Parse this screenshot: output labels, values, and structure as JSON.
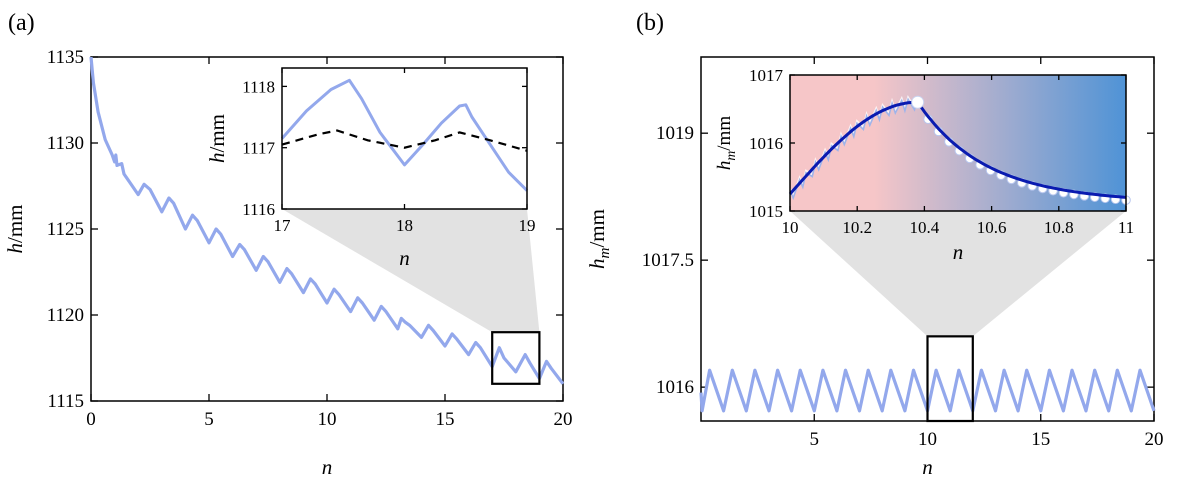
{
  "colors": {
    "series": "#93a8ec",
    "dashed": "#000000",
    "fit_line": "#0a1bb0",
    "marker": "#ffffff",
    "zoom_fill": "#e2e2e2",
    "bg_left": "#f6c6c8",
    "bg_right": "#4f93d6"
  },
  "chart_data": [
    {
      "panel_label": "(a)",
      "type": "line",
      "xlabel": "n",
      "ylabel": "h/mm",
      "xlim": [
        0,
        20
      ],
      "ylim": [
        1115,
        1135
      ],
      "xticks": [
        0,
        5,
        10,
        15,
        20
      ],
      "yticks": [
        1115,
        1120,
        1125,
        1130,
        1135
      ],
      "series": [
        {
          "description_free": true,
          "values": [
            [
              0,
              1135
            ],
            [
              0.1,
              1133.5
            ],
            [
              0.3,
              1131.8
            ],
            [
              0.6,
              1130.2
            ],
            [
              0.9,
              1129.3
            ],
            [
              1.0,
              1128.9
            ],
            [
              1.05,
              1129.3
            ],
            [
              1.1,
              1128.7
            ],
            [
              1.3,
              1128.8
            ],
            [
              1.4,
              1128.2
            ],
            [
              2.0,
              1127.0
            ],
            [
              2.25,
              1127.6
            ],
            [
              2.5,
              1127.3
            ],
            [
              3.0,
              1126.0
            ],
            [
              3.3,
              1126.8
            ],
            [
              3.5,
              1126.5
            ],
            [
              4.0,
              1125.0
            ],
            [
              4.3,
              1125.8
            ],
            [
              4.5,
              1125.5
            ],
            [
              5.0,
              1124.2
            ],
            [
              5.3,
              1125.0
            ],
            [
              5.5,
              1124.7
            ],
            [
              6.0,
              1123.4
            ],
            [
              6.3,
              1124.1
            ],
            [
              6.5,
              1123.8
            ],
            [
              7.0,
              1122.6
            ],
            [
              7.3,
              1123.4
            ],
            [
              7.5,
              1123.1
            ],
            [
              8.0,
              1121.9
            ],
            [
              8.3,
              1122.7
            ],
            [
              8.5,
              1122.4
            ],
            [
              9.0,
              1121.3
            ],
            [
              9.3,
              1122.1
            ],
            [
              9.5,
              1121.8
            ],
            [
              10.0,
              1120.7
            ],
            [
              10.3,
              1121.5
            ],
            [
              10.5,
              1121.2
            ],
            [
              11.0,
              1120.2
            ],
            [
              11.3,
              1121.0
            ],
            [
              11.5,
              1120.7
            ],
            [
              12.0,
              1119.7
            ],
            [
              12.3,
              1120.5
            ],
            [
              12.5,
              1120.2
            ],
            [
              13.0,
              1119.2
            ],
            [
              13.15,
              1119.8
            ],
            [
              13.3,
              1119.6
            ],
            [
              13.5,
              1119.4
            ],
            [
              14.0,
              1118.7
            ],
            [
              14.3,
              1119.4
            ],
            [
              14.5,
              1119.1
            ],
            [
              15.0,
              1118.2
            ],
            [
              15.3,
              1118.9
            ],
            [
              15.5,
              1118.6
            ],
            [
              16.0,
              1117.7
            ],
            [
              16.3,
              1118.4
            ],
            [
              16.5,
              1118.1
            ],
            [
              17.0,
              1117.0
            ],
            [
              17.3,
              1118.1
            ],
            [
              17.5,
              1117.5
            ],
            [
              18.0,
              1116.7
            ],
            [
              18.4,
              1117.7
            ],
            [
              18.6,
              1117.2
            ],
            [
              19.0,
              1116.3
            ],
            [
              19.3,
              1117.3
            ],
            [
              19.5,
              1116.9
            ],
            [
              20.0,
              1116.0
            ]
          ]
        }
      ],
      "zoom_box": {
        "x": [
          17,
          19
        ],
        "y": [
          1116,
          1119
        ]
      },
      "inset": {
        "xlabel": "n",
        "ylabel": "h/mm",
        "xlim": [
          17,
          19
        ],
        "ylim": [
          1116,
          1118.3
        ],
        "xticks": [
          17,
          18,
          19
        ],
        "yticks": [
          1116,
          1117,
          1118
        ],
        "series": [
          {
            "style": "solid",
            "values": [
              [
                17.0,
                1117.15
              ],
              [
                17.2,
                1117.6
              ],
              [
                17.4,
                1117.95
              ],
              [
                17.55,
                1118.1
              ],
              [
                17.65,
                1117.8
              ],
              [
                17.8,
                1117.25
              ],
              [
                18.0,
                1116.72
              ],
              [
                18.15,
                1117.05
              ],
              [
                18.3,
                1117.4
              ],
              [
                18.45,
                1117.68
              ],
              [
                18.5,
                1117.7
              ],
              [
                18.55,
                1117.5
              ],
              [
                18.7,
                1117.05
              ],
              [
                18.85,
                1116.6
              ],
              [
                19.0,
                1116.3
              ]
            ]
          },
          {
            "style": "dashed",
            "values": [
              [
                17.0,
                1117.05
              ],
              [
                17.3,
                1117.22
              ],
              [
                17.45,
                1117.28
              ],
              [
                17.7,
                1117.12
              ],
              [
                18.0,
                1117.0
              ],
              [
                18.25,
                1117.12
              ],
              [
                18.45,
                1117.25
              ],
              [
                18.7,
                1117.12
              ],
              [
                19.0,
                1116.95
              ]
            ]
          }
        ]
      }
    },
    {
      "panel_label": "(b)",
      "type": "line",
      "xlabel": "n",
      "ylabel": "h_m/mm",
      "ylabel_main": "h",
      "ylabel_sub": "m",
      "ylabel_unit": "/mm",
      "xlim": [
        0,
        20
      ],
      "ylim": [
        1015.6,
        1019.9
      ],
      "xticks": [
        5,
        10,
        15,
        20
      ],
      "yticks": [
        1016,
        1017.5,
        1019
      ],
      "ytick_labels": [
        "1016",
        "1017.5",
        "1019"
      ],
      "sawtooth": {
        "period": 1,
        "low": 1015.72,
        "high": 1016.2,
        "rise_fraction": 0.38
      },
      "zoom_box": {
        "x": [
          10,
          12
        ],
        "y": [
          1015.6,
          1016.6
        ]
      },
      "inset": {
        "xlabel": "n",
        "ylabel": "h_m/mm",
        "xlim": [
          10,
          11
        ],
        "ylim": [
          1015,
          1017
        ],
        "xticks": [
          10,
          10.2,
          10.4,
          10.6,
          10.8,
          11
        ],
        "xtick_labels": [
          "10",
          "10.2",
          "10.4",
          "10.6",
          "10.8",
          "11"
        ],
        "yticks": [
          1015,
          1016,
          1017
        ],
        "peak": [
          10.38,
          1016.6
        ],
        "rise_start": [
          10.0,
          1015.25
        ],
        "fall_end": [
          11.0,
          1015.2
        ]
      }
    }
  ]
}
